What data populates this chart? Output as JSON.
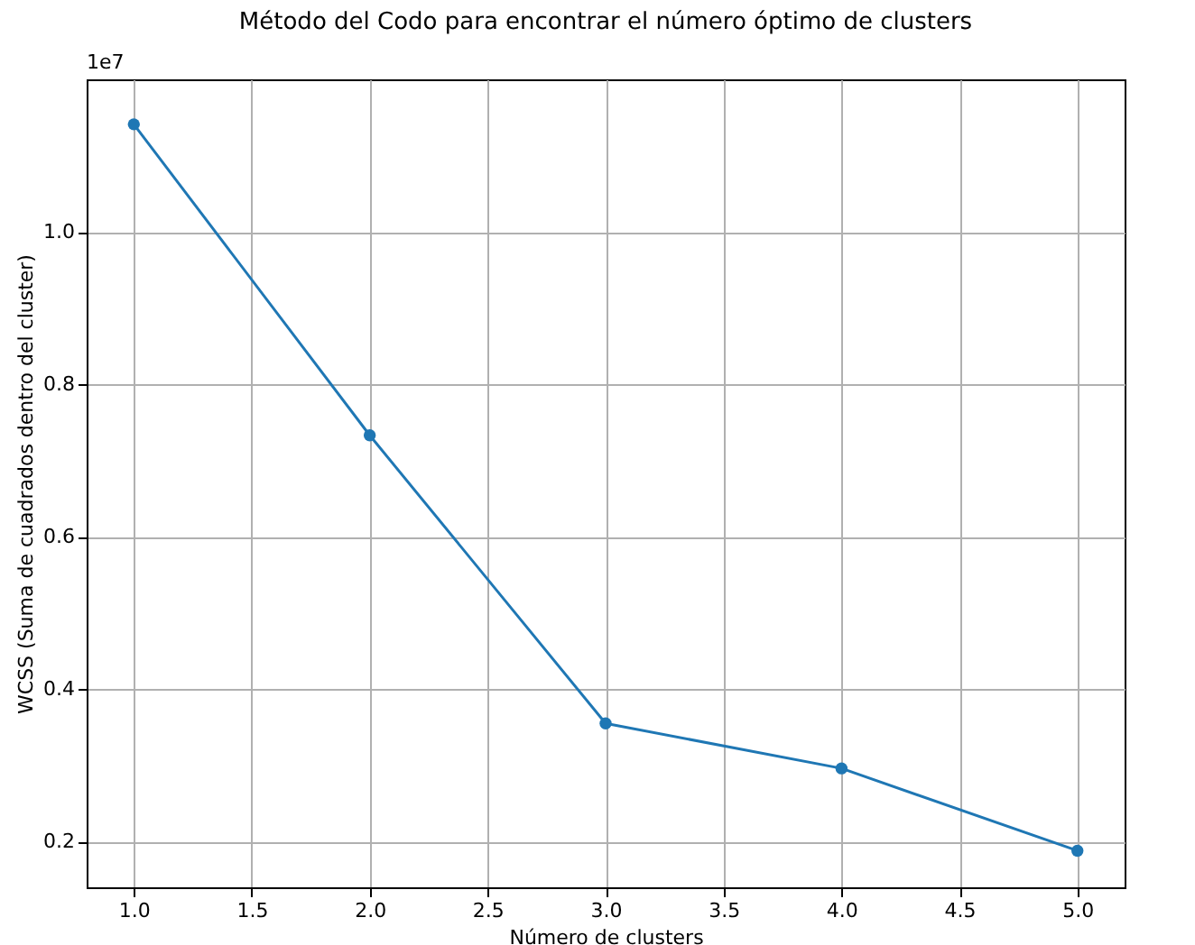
{
  "chart_data": {
    "type": "line",
    "title": "Método del Codo para encontrar el número óptimo de clusters",
    "xlabel": "Número de clusters",
    "ylabel": "WCSS (Suma de cuadrados dentro del cluster)",
    "x": [
      1,
      2,
      3,
      4,
      5
    ],
    "series": [
      {
        "color": "#1f77b4",
        "values": [
          1.141,
          0.733,
          0.355,
          0.296,
          0.188
        ]
      }
    ],
    "xlim": [
      0.8,
      5.2
    ],
    "xticks": [
      {
        "value": 1,
        "label": "1.0"
      },
      {
        "value": 1.5,
        "label": "1.5"
      },
      {
        "value": 2,
        "label": "2.0"
      },
      {
        "value": 2.5,
        "label": "2.5"
      },
      {
        "value": 3,
        "label": "3.0"
      },
      {
        "value": 3.5,
        "label": "3.5"
      },
      {
        "value": 4,
        "label": "4.0"
      },
      {
        "value": 4.5,
        "label": "4.5"
      },
      {
        "value": 5,
        "label": "5.0"
      }
    ],
    "ylim": [
      0.14,
      1.2
    ],
    "yticks": [
      0.2,
      0.4,
      0.6,
      0.8,
      {
        "value": 1,
        "label": "1.0"
      }
    ],
    "annotations": [
      "1e7"
    ],
    "grid": true,
    "marker": "circle",
    "line_style": "solid"
  }
}
